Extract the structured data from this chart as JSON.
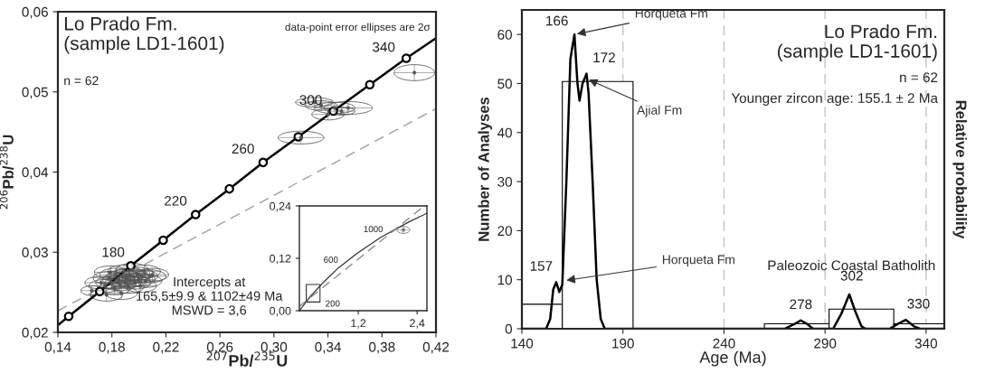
{
  "chart_data": [
    {
      "type": "scatter",
      "title": "Lo Prado Fm.\n(sample LD1-1601)",
      "xlabel": "$^{207}$Pb/$^{235}$U",
      "ylabel": "$^{206}$Pb/$^{238}$U",
      "xlim": [
        0.14,
        0.42
      ],
      "ylim": [
        0.02,
        0.06
      ],
      "xticks": [
        {
          "value": 0.14,
          "label": "0,14"
        },
        {
          "value": 0.18,
          "label": "0,18"
        },
        {
          "value": 0.22,
          "label": "0,22"
        },
        {
          "value": 0.26,
          "label": "0,26"
        },
        {
          "value": 0.3,
          "label": "0,30"
        },
        {
          "value": 0.34,
          "label": "0,34"
        },
        {
          "value": 0.38,
          "label": "0,38"
        },
        {
          "value": 0.42,
          "label": "0,42"
        }
      ],
      "yticks": [
        {
          "value": 0.02,
          "label": "0,02"
        },
        {
          "value": 0.03,
          "label": "0,03"
        },
        {
          "value": 0.04,
          "label": "0,04"
        },
        {
          "value": 0.05,
          "label": "0,05"
        },
        {
          "value": 0.06,
          "label": "0,06"
        }
      ],
      "series": [
        {
          "type": "line",
          "color": "#a0a0a0",
          "line_style": "dashed",
          "x": [
            0.14,
            0.42
          ],
          "values": [
            0.0227,
            0.0479
          ]
        },
        {
          "type": "scatter",
          "color": "#555555",
          "x": [
            0.165,
            0.172,
            0.175,
            0.178,
            0.18,
            0.182,
            0.183,
            0.185,
            0.186,
            0.188,
            0.189,
            0.19,
            0.191,
            0.192,
            0.193,
            0.194,
            0.195,
            0.196,
            0.197,
            0.199,
            0.2,
            0.202,
            0.204,
            0.205,
            0.208,
            0.21,
            0.187,
            0.179,
            0.176,
            0.201,
            0.32,
            0.335,
            0.345,
            0.355,
            0.34,
            0.35,
            0.33,
            0.404
          ],
          "values": [
            0.0252,
            0.0262,
            0.0258,
            0.0268,
            0.0262,
            0.0255,
            0.0272,
            0.0266,
            0.026,
            0.027,
            0.0276,
            0.0263,
            0.0268,
            0.0257,
            0.0272,
            0.0265,
            0.0278,
            0.0269,
            0.0262,
            0.0273,
            0.0266,
            0.027,
            0.0276,
            0.0264,
            0.027,
            0.0272,
            0.0249,
            0.0275,
            0.0247,
            0.0258,
            0.0443,
            0.0483,
            0.048,
            0.048,
            0.0472,
            0.0476,
            0.0487,
            0.0524
          ],
          "xerrors": [
            0.008,
            0.012,
            0.012,
            0.012,
            0.012,
            0.012,
            0.012,
            0.012,
            0.012,
            0.012,
            0.012,
            0.012,
            0.012,
            0.012,
            0.012,
            0.012,
            0.012,
            0.012,
            0.012,
            0.012,
            0.012,
            0.012,
            0.012,
            0.012,
            0.012,
            0.012,
            0.012,
            0.012,
            0.012,
            0.012,
            0.017,
            0.012,
            0.015,
            0.018,
            0.012,
            0.01,
            0.014,
            0.015
          ],
          "errors": [
            0.0006,
            0.0008,
            0.0008,
            0.0008,
            0.0008,
            0.0008,
            0.0008,
            0.0008,
            0.0008,
            0.0008,
            0.0008,
            0.0008,
            0.0008,
            0.0008,
            0.0008,
            0.0008,
            0.0008,
            0.0008,
            0.0008,
            0.0008,
            0.0008,
            0.0008,
            0.0008,
            0.0008,
            0.0008,
            0.0008,
            0.0008,
            0.0008,
            0.0008,
            0.0008,
            0.0008,
            0.0006,
            0.0007,
            0.0008,
            0.0007,
            0.0005,
            0.0006,
            0.001
          ]
        },
        {
          "type": "line",
          "color": "#000000",
          "x": [
            0.14,
            0.148,
            0.171,
            0.194,
            0.218,
            0.242,
            0.267,
            0.292,
            0.318,
            0.344,
            0.371,
            0.398,
            0.42
          ],
          "values": [
            0.0209,
            0.022,
            0.0251,
            0.0283,
            0.0315,
            0.0347,
            0.0379,
            0.0412,
            0.0444,
            0.0476,
            0.0509,
            0.0542,
            0.0567
          ]
        },
        {
          "type": "scatter",
          "color": "#000000",
          "marker": "circle",
          "x": [
            0.148,
            0.171,
            0.194,
            0.218,
            0.242,
            0.267,
            0.292,
            0.318,
            0.344,
            0.371,
            0.398
          ],
          "values": [
            0.022,
            0.0251,
            0.0283,
            0.0315,
            0.0347,
            0.0379,
            0.0412,
            0.0444,
            0.0476,
            0.0509,
            0.0542
          ]
        }
      ],
      "annotations": [
        "n = 62",
        "data-point error ellipses are 2σ",
        "Intercepts at\n165,5±9.9 & 1102±49 Ma\nMSWD = 3,6",
        {
          "text": "180",
          "x": 0.194,
          "y": 0.0283
        },
        {
          "text": "220",
          "x": 0.242,
          "y": 0.0347
        },
        {
          "text": "260",
          "x": 0.292,
          "y": 0.0412
        },
        {
          "text": "300",
          "x": 0.344,
          "y": 0.0476
        },
        {
          "text": "340",
          "x": 0.398,
          "y": 0.0542
        }
      ]
    },
    {
      "type": "histogram",
      "title": "Lo Prado Fm.\n(sample LD1-1601)",
      "xlabel": "Age (Ma)",
      "ylabel": "Number of Analyses",
      "y2label": "Relative probability",
      "xlim": [
        140,
        349
      ],
      "ylim": [
        0,
        65
      ],
      "xticks": [
        140,
        190,
        240,
        290,
        340
      ],
      "yticks": [
        0,
        10,
        20,
        30,
        40,
        50,
        60
      ],
      "bins": [
        140,
        160,
        195,
        260,
        292,
        324,
        349
      ],
      "values": [
        5,
        50.4,
        0,
        1,
        4,
        1
      ],
      "color": "#ffffff",
      "series": [
        {
          "type": "line",
          "color": "#000000",
          "x": [
            140,
            152,
            154,
            155.5,
            157,
            158.5,
            160,
            162,
            164,
            166,
            167.5,
            168.5,
            170,
            172,
            173,
            175,
            177,
            179,
            181,
            270,
            275,
            278,
            281,
            284,
            294,
            298,
            302,
            305,
            308,
            310,
            322,
            326,
            330,
            334,
            337,
            349
          ],
          "values": [
            0,
            0,
            2,
            8,
            9.5,
            7.5,
            9,
            30,
            55,
            60,
            50,
            46.5,
            50,
            52,
            48,
            30,
            10,
            2,
            0,
            0,
            1,
            1.7,
            1,
            0,
            0,
            3,
            7,
            3.5,
            0.5,
            0,
            0,
            1,
            1.8,
            0.5,
            0,
            0
          ]
        }
      ],
      "ref_lines": [
        {
          "axis": "x",
          "value": 190,
          "color": "#cdbfc3",
          "line_style": "dashed"
        },
        {
          "axis": "x",
          "value": 240,
          "color": "#cdbfc3",
          "line_style": "dashed"
        },
        {
          "axis": "x",
          "value": 290,
          "color": "#cdbfc3",
          "line_style": "dashed"
        },
        {
          "axis": "x",
          "value": 340,
          "color": "#cdbfc3",
          "line_style": "dashed"
        }
      ],
      "annotations": [
        "n = 62",
        "Younger zircon age: 155.1 ± 2 Ma",
        {
          "text": "166",
          "x": 166,
          "y": 60
        },
        {
          "text": "172",
          "x": 172,
          "y": 52
        },
        {
          "text": "157",
          "x": 157,
          "y": 9.5
        },
        {
          "text": "278",
          "x": 278,
          "y": 1.7
        },
        {
          "text": "302",
          "x": 302,
          "y": 7
        },
        {
          "text": "330",
          "x": 330,
          "y": 1.8
        },
        {
          "text": "Horqueta Fm",
          "x": 166,
          "y": 60
        },
        {
          "text": "Ajial Fm",
          "x": 172,
          "y": 51
        },
        {
          "text": "Horqueta Fm",
          "x": 160.8,
          "y": 9.8
        },
        "Paleozoic Coastal Batholith"
      ]
    },
    {
      "type": "line",
      "xlim": [
        0,
        2.6
      ],
      "ylim": [
        0,
        0.24
      ],
      "xticks": [
        {
          "value": 1.2,
          "label": "1,2"
        },
        {
          "value": 2.4,
          "label": "2,4"
        }
      ],
      "yticks": [
        {
          "value": 0,
          "label": "0,00"
        },
        {
          "value": 0.12,
          "label": "0,12"
        },
        {
          "value": 0.24,
          "label": "0,24"
        }
      ],
      "series": [
        {
          "type": "line",
          "color": "#333333",
          "x": [
            0,
            0.218,
            0.48,
            0.795,
            1.183,
            1.66,
            2.244,
            2.598
          ],
          "values": [
            0,
            0.032,
            0.064,
            0.098,
            0.132,
            0.168,
            0.204,
            0.223
          ]
        },
        {
          "type": "line",
          "color": "#808080",
          "line_style": "dashed",
          "x": [
            0,
            2.55
          ],
          "values": [
            0.01,
            0.24
          ]
        },
        {
          "type": "scatter",
          "color": "#777777",
          "x": [
            2.12
          ],
          "values": [
            0.185
          ],
          "xerrors": [
            0.13
          ],
          "errors": [
            0.008
          ]
        }
      ],
      "annotations": [
        {
          "text": "200",
          "x": 0.218,
          "y": 0.032
        },
        {
          "text": "600",
          "x": 0.795,
          "y": 0.098
        },
        {
          "text": "1000",
          "x": 1.66,
          "y": 0.168
        }
      ]
    }
  ]
}
